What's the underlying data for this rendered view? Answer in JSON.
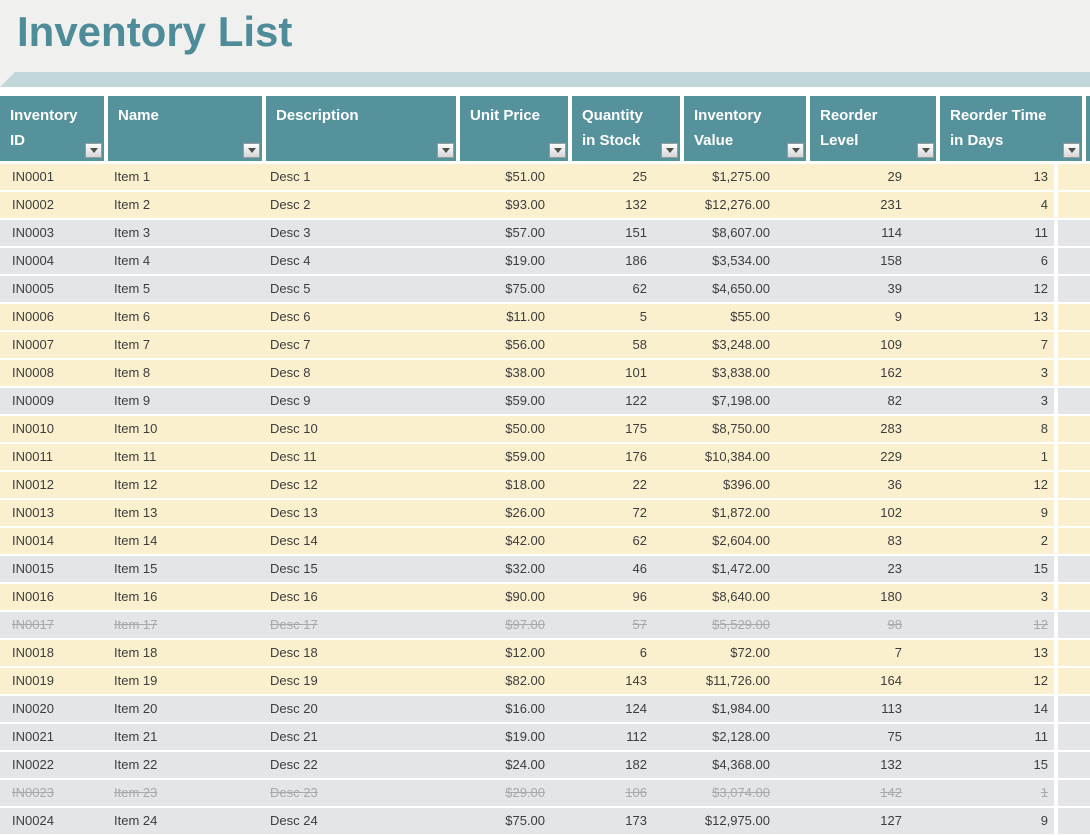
{
  "title": "Inventory List",
  "colors": {
    "title_text": "#4E8C99",
    "ribbon_band": "#C2D7DA",
    "header_bg": "#55929B",
    "header_text": "#FFFFFF",
    "row_highlight_cream": "#FBF0CE",
    "row_gray": "#E3E5E9",
    "discontinued_text": "#A7A9AC",
    "data_text": "#3D3D3D",
    "page_top_bg": "#F0F0EE"
  },
  "icons": {
    "filter_dropdown": "chevron-down"
  },
  "columns": [
    {
      "id": "inventory_id",
      "label": "Inventory ID"
    },
    {
      "id": "name",
      "label": "Name"
    },
    {
      "id": "description",
      "label": "Description"
    },
    {
      "id": "unit_price",
      "label": "Unit Price"
    },
    {
      "id": "quantity_in_stock",
      "label": "Quantity in Stock"
    },
    {
      "id": "inventory_value",
      "label": "Inventory Value"
    },
    {
      "id": "reorder_level",
      "label": "Reorder Level"
    },
    {
      "id": "reorder_time_in_days",
      "label": "Reorder Time in Days"
    }
  ],
  "rows": [
    {
      "inventory_id": "IN0001",
      "name": "Item 1",
      "description": "Desc 1",
      "unit_price": "$51.00",
      "quantity_in_stock": "25",
      "inventory_value": "$1,275.00",
      "reorder_level": "29",
      "reorder_time_in_days": "13",
      "tone": "cream",
      "discontinued": false
    },
    {
      "inventory_id": "IN0002",
      "name": "Item 2",
      "description": "Desc 2",
      "unit_price": "$93.00",
      "quantity_in_stock": "132",
      "inventory_value": "$12,276.00",
      "reorder_level": "231",
      "reorder_time_in_days": "4",
      "tone": "cream",
      "discontinued": false
    },
    {
      "inventory_id": "IN0003",
      "name": "Item 3",
      "description": "Desc 3",
      "unit_price": "$57.00",
      "quantity_in_stock": "151",
      "inventory_value": "$8,607.00",
      "reorder_level": "114",
      "reorder_time_in_days": "11",
      "tone": "gray",
      "discontinued": false
    },
    {
      "inventory_id": "IN0004",
      "name": "Item 4",
      "description": "Desc 4",
      "unit_price": "$19.00",
      "quantity_in_stock": "186",
      "inventory_value": "$3,534.00",
      "reorder_level": "158",
      "reorder_time_in_days": "6",
      "tone": "gray",
      "discontinued": false
    },
    {
      "inventory_id": "IN0005",
      "name": "Item 5",
      "description": "Desc 5",
      "unit_price": "$75.00",
      "quantity_in_stock": "62",
      "inventory_value": "$4,650.00",
      "reorder_level": "39",
      "reorder_time_in_days": "12",
      "tone": "gray",
      "discontinued": false
    },
    {
      "inventory_id": "IN0006",
      "name": "Item 6",
      "description": "Desc 6",
      "unit_price": "$11.00",
      "quantity_in_stock": "5",
      "inventory_value": "$55.00",
      "reorder_level": "9",
      "reorder_time_in_days": "13",
      "tone": "cream",
      "discontinued": false
    },
    {
      "inventory_id": "IN0007",
      "name": "Item 7",
      "description": "Desc 7",
      "unit_price": "$56.00",
      "quantity_in_stock": "58",
      "inventory_value": "$3,248.00",
      "reorder_level": "109",
      "reorder_time_in_days": "7",
      "tone": "cream",
      "discontinued": false
    },
    {
      "inventory_id": "IN0008",
      "name": "Item 8",
      "description": "Desc 8",
      "unit_price": "$38.00",
      "quantity_in_stock": "101",
      "inventory_value": "$3,838.00",
      "reorder_level": "162",
      "reorder_time_in_days": "3",
      "tone": "cream",
      "discontinued": false
    },
    {
      "inventory_id": "IN0009",
      "name": "Item 9",
      "description": "Desc 9",
      "unit_price": "$59.00",
      "quantity_in_stock": "122",
      "inventory_value": "$7,198.00",
      "reorder_level": "82",
      "reorder_time_in_days": "3",
      "tone": "gray",
      "discontinued": false
    },
    {
      "inventory_id": "IN0010",
      "name": "Item 10",
      "description": "Desc 10",
      "unit_price": "$50.00",
      "quantity_in_stock": "175",
      "inventory_value": "$8,750.00",
      "reorder_level": "283",
      "reorder_time_in_days": "8",
      "tone": "cream",
      "discontinued": false
    },
    {
      "inventory_id": "IN0011",
      "name": "Item 11",
      "description": "Desc 11",
      "unit_price": "$59.00",
      "quantity_in_stock": "176",
      "inventory_value": "$10,384.00",
      "reorder_level": "229",
      "reorder_time_in_days": "1",
      "tone": "cream",
      "discontinued": false
    },
    {
      "inventory_id": "IN0012",
      "name": "Item 12",
      "description": "Desc 12",
      "unit_price": "$18.00",
      "quantity_in_stock": "22",
      "inventory_value": "$396.00",
      "reorder_level": "36",
      "reorder_time_in_days": "12",
      "tone": "cream",
      "discontinued": false
    },
    {
      "inventory_id": "IN0013",
      "name": "Item 13",
      "description": "Desc 13",
      "unit_price": "$26.00",
      "quantity_in_stock": "72",
      "inventory_value": "$1,872.00",
      "reorder_level": "102",
      "reorder_time_in_days": "9",
      "tone": "cream",
      "discontinued": false
    },
    {
      "inventory_id": "IN0014",
      "name": "Item 14",
      "description": "Desc 14",
      "unit_price": "$42.00",
      "quantity_in_stock": "62",
      "inventory_value": "$2,604.00",
      "reorder_level": "83",
      "reorder_time_in_days": "2",
      "tone": "cream",
      "discontinued": false
    },
    {
      "inventory_id": "IN0015",
      "name": "Item 15",
      "description": "Desc 15",
      "unit_price": "$32.00",
      "quantity_in_stock": "46",
      "inventory_value": "$1,472.00",
      "reorder_level": "23",
      "reorder_time_in_days": "15",
      "tone": "gray",
      "discontinued": false
    },
    {
      "inventory_id": "IN0016",
      "name": "Item 16",
      "description": "Desc 16",
      "unit_price": "$90.00",
      "quantity_in_stock": "96",
      "inventory_value": "$8,640.00",
      "reorder_level": "180",
      "reorder_time_in_days": "3",
      "tone": "cream",
      "discontinued": false
    },
    {
      "inventory_id": "IN0017",
      "name": "Item 17",
      "description": "Desc 17",
      "unit_price": "$97.00",
      "quantity_in_stock": "57",
      "inventory_value": "$5,529.00",
      "reorder_level": "98",
      "reorder_time_in_days": "12",
      "tone": "gray",
      "discontinued": true
    },
    {
      "inventory_id": "IN0018",
      "name": "Item 18",
      "description": "Desc 18",
      "unit_price": "$12.00",
      "quantity_in_stock": "6",
      "inventory_value": "$72.00",
      "reorder_level": "7",
      "reorder_time_in_days": "13",
      "tone": "cream",
      "discontinued": false
    },
    {
      "inventory_id": "IN0019",
      "name": "Item 19",
      "description": "Desc 19",
      "unit_price": "$82.00",
      "quantity_in_stock": "143",
      "inventory_value": "$11,726.00",
      "reorder_level": "164",
      "reorder_time_in_days": "12",
      "tone": "cream",
      "discontinued": false
    },
    {
      "inventory_id": "IN0020",
      "name": "Item 20",
      "description": "Desc 20",
      "unit_price": "$16.00",
      "quantity_in_stock": "124",
      "inventory_value": "$1,984.00",
      "reorder_level": "113",
      "reorder_time_in_days": "14",
      "tone": "gray",
      "discontinued": false
    },
    {
      "inventory_id": "IN0021",
      "name": "Item 21",
      "description": "Desc 21",
      "unit_price": "$19.00",
      "quantity_in_stock": "112",
      "inventory_value": "$2,128.00",
      "reorder_level": "75",
      "reorder_time_in_days": "11",
      "tone": "gray",
      "discontinued": false
    },
    {
      "inventory_id": "IN0022",
      "name": "Item 22",
      "description": "Desc 22",
      "unit_price": "$24.00",
      "quantity_in_stock": "182",
      "inventory_value": "$4,368.00",
      "reorder_level": "132",
      "reorder_time_in_days": "15",
      "tone": "gray",
      "discontinued": false
    },
    {
      "inventory_id": "IN0023",
      "name": "Item 23",
      "description": "Desc 23",
      "unit_price": "$29.00",
      "quantity_in_stock": "106",
      "inventory_value": "$3,074.00",
      "reorder_level": "142",
      "reorder_time_in_days": "1",
      "tone": "gray",
      "discontinued": true
    },
    {
      "inventory_id": "IN0024",
      "name": "Item 24",
      "description": "Desc 24",
      "unit_price": "$75.00",
      "quantity_in_stock": "173",
      "inventory_value": "$12,975.00",
      "reorder_level": "127",
      "reorder_time_in_days": "9",
      "tone": "gray",
      "discontinued": false
    }
  ]
}
